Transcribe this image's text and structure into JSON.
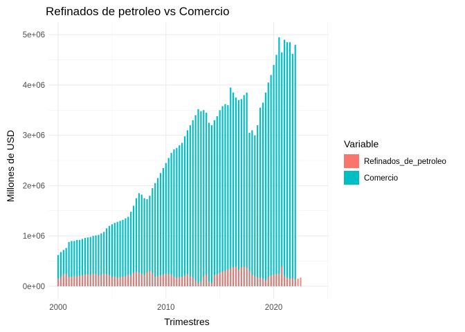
{
  "chart_data": {
    "type": "bar",
    "title": "Refinados de petroleo vs Comercio",
    "xlabel": "Trimestres",
    "ylabel": "Millones de USD",
    "xlim": [
      1999.1,
      2025.1
    ],
    "ylim": [
      -250000,
      5250000
    ],
    "x_ticks": [
      2000,
      2010,
      2020
    ],
    "x_tick_labels": [
      "2000",
      "2010",
      "2020"
    ],
    "y_ticks": [
      0,
      1000000,
      2000000,
      3000000,
      4000000,
      5000000
    ],
    "y_tick_labels": [
      "0e+00",
      "1e+06",
      "2e+06",
      "3e+06",
      "4e+06",
      "5e+06"
    ],
    "grid": true,
    "legend_position": "right",
    "legend_title": "Variable",
    "x_start": 2000.0,
    "x_step": 0.25,
    "series": [
      {
        "name": "Refinados_de_petroleo",
        "color": "#F8766D",
        "values": [
          150000,
          180000,
          240000,
          240000,
          180000,
          190000,
          200000,
          190000,
          210000,
          220000,
          230000,
          240000,
          230000,
          250000,
          240000,
          220000,
          230000,
          250000,
          240000,
          220000,
          180000,
          190000,
          170000,
          180000,
          190000,
          200000,
          230000,
          210000,
          270000,
          290000,
          270000,
          250000,
          220000,
          280000,
          300000,
          260000,
          180000,
          200000,
          220000,
          230000,
          250000,
          240000,
          230000,
          190000,
          170000,
          180000,
          190000,
          210000,
          240000,
          200000,
          180000,
          120000,
          60000,
          90000,
          200000,
          230000,
          90000,
          60000,
          220000,
          240000,
          270000,
          290000,
          310000,
          330000,
          360000,
          380000,
          390000,
          330000,
          380000,
          390000,
          370000,
          310000,
          220000,
          200000,
          180000,
          170000,
          150000,
          110000,
          190000,
          210000,
          230000,
          240000,
          250000,
          400000,
          200000,
          170000,
          150000,
          160000,
          140000,
          150000,
          170000
        ]
      },
      {
        "name": "Comercio",
        "color": "#00BFC4",
        "values": [
          620000,
          680000,
          720000,
          760000,
          880000,
          900000,
          900000,
          920000,
          920000,
          940000,
          960000,
          970000,
          980000,
          1000000,
          1010000,
          1020000,
          1050000,
          1080000,
          1150000,
          1200000,
          1230000,
          1260000,
          1280000,
          1300000,
          1320000,
          1350000,
          1380000,
          1480000,
          1600000,
          1750000,
          1850000,
          1820000,
          1750000,
          1730000,
          1800000,
          1950000,
          2050000,
          2150000,
          2250000,
          2350000,
          2450000,
          2550000,
          2650000,
          2720000,
          2750000,
          2800000,
          2850000,
          2980000,
          3100000,
          3200000,
          3300000,
          3400000,
          3520000,
          3480000,
          3500000,
          3450000,
          3250000,
          3200000,
          3300000,
          3380000,
          3500000,
          3580000,
          3620000,
          3600000,
          3950000,
          3850000,
          3750000,
          3700000,
          3720000,
          3800000,
          3850000,
          3050000,
          3100000,
          3000000,
          3200000,
          3550000,
          3650000,
          3850000,
          4050000,
          4200000,
          4400000,
          4600000,
          4950000,
          4650000,
          4900000,
          4850000,
          4850000,
          4620000,
          4800000
        ]
      }
    ]
  }
}
